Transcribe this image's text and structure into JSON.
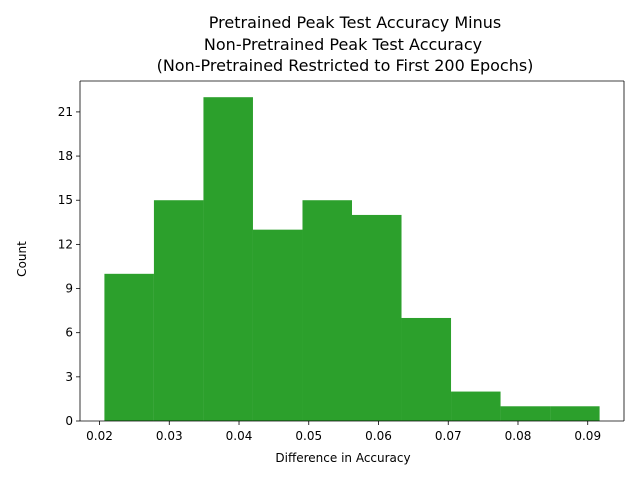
{
  "chart_data": {
    "type": "bar",
    "title_lines": [
      "Pretrained Peak Test Accuracy Minus",
      "Non-Pretrained Peak Test Accuracy",
      "(Non-Pretrained Restricted to First 200 Epochs)"
    ],
    "xlabel": "Difference in Accuracy",
    "ylabel": "Count",
    "bin_edges": [
      0.0207,
      0.0278,
      0.0349,
      0.042,
      0.0491,
      0.0562,
      0.0633,
      0.0704,
      0.0775,
      0.0846,
      0.0917
    ],
    "values": [
      10,
      15,
      22,
      13,
      15,
      14,
      7,
      2,
      1,
      1
    ],
    "xlim": [
      0.0172,
      0.0952
    ],
    "ylim": [
      0,
      23.1
    ],
    "xticks": [
      0.02,
      0.03,
      0.04,
      0.05,
      0.06,
      0.07,
      0.08,
      0.09
    ],
    "xtick_labels": [
      "0.02",
      "0.03",
      "0.04",
      "0.05",
      "0.06",
      "0.07",
      "0.08",
      "0.09"
    ],
    "yticks": [
      0,
      3,
      6,
      9,
      12,
      15,
      18,
      21
    ],
    "ytick_labels": [
      "0",
      "3",
      "6",
      "9",
      "12",
      "15",
      "18",
      "21"
    ],
    "bar_color": "#2ca02c",
    "grid": false,
    "legend": "none"
  }
}
